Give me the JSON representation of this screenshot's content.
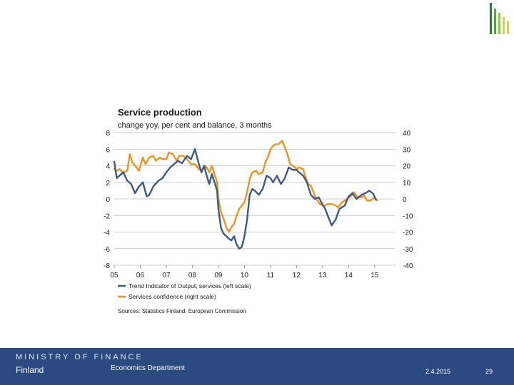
{
  "footer": {
    "ministry": "MINISTRY OF FINANCE",
    "country": "Finland",
    "department": "Economics Department",
    "date": "2.4.2015",
    "page": "29"
  },
  "colors": {
    "footer_bg": "#2a4a80",
    "series_blue": "#3d5a80",
    "series_orange": "#f0921e",
    "logo_bars": [
      "#2a7d3a",
      "#5aa23a",
      "#9bc43a",
      "#c8d85a",
      "#e6c84a"
    ]
  },
  "chart_data": {
    "type": "line",
    "title": "Service production",
    "subtitle": "change yoy, per cent and balance, 3 months",
    "x_categories": [
      "05",
      "06",
      "07",
      "08",
      "09",
      "10",
      "11",
      "12",
      "13",
      "14",
      "15"
    ],
    "xlim": [
      2005,
      2015.8
    ],
    "y_left": {
      "ticks": [
        8,
        6,
        4,
        2,
        0,
        -2,
        -4,
        -6,
        -8
      ],
      "lim": [
        -8,
        8
      ]
    },
    "y_right": {
      "ticks": [
        40,
        30,
        20,
        10,
        0,
        -10,
        -20,
        -30,
        -40
      ],
      "lim": [
        -40,
        40
      ]
    },
    "grid": true,
    "legend_position": "bottom-left",
    "source": "Sources: Statistics Finland, European Commission",
    "series": [
      {
        "name": "Trend Indicator of Output, services (left scale)",
        "axis": "left",
        "color": "#3d5a80",
        "x": [
          2005.0,
          2005.1,
          2005.2,
          2005.35,
          2005.5,
          2005.65,
          2005.8,
          2005.95,
          2006.1,
          2006.25,
          2006.35,
          2006.5,
          2006.7,
          2006.85,
          2007.0,
          2007.15,
          2007.3,
          2007.45,
          2007.6,
          2007.8,
          2007.95,
          2008.1,
          2008.25,
          2008.35,
          2008.45,
          2008.55,
          2008.65,
          2008.75,
          2008.85,
          2008.95,
          2009.0,
          2009.1,
          2009.2,
          2009.3,
          2009.4,
          2009.5,
          2009.6,
          2009.7,
          2009.8,
          2009.9,
          2010.0,
          2010.1,
          2010.2,
          2010.3,
          2010.4,
          2010.55,
          2010.7,
          2010.85,
          2011.0,
          2011.1,
          2011.25,
          2011.4,
          2011.55,
          2011.7,
          2011.85,
          2012.0,
          2012.1,
          2012.25,
          2012.4,
          2012.55,
          2012.7,
          2012.85,
          2013.0,
          2013.1,
          2013.2,
          2013.35,
          2013.5,
          2013.65,
          2013.85,
          2014.0,
          2014.15,
          2014.3,
          2014.5,
          2014.65,
          2014.8,
          2014.95,
          2015.05
        ],
        "y": [
          4.5,
          2.5,
          2.8,
          3.2,
          2.2,
          1.8,
          0.7,
          1.5,
          2.0,
          0.3,
          0.5,
          1.5,
          2.2,
          2.5,
          3.2,
          3.8,
          4.2,
          4.6,
          4.3,
          5.2,
          4.8,
          6.0,
          4.2,
          3.2,
          4.0,
          2.8,
          1.8,
          3.0,
          2.0,
          1.0,
          -1.2,
          -3.5,
          -4.2,
          -4.5,
          -4.8,
          -5.0,
          -4.5,
          -5.5,
          -6.0,
          -5.8,
          -4.5,
          -2.5,
          0.5,
          1.2,
          1.0,
          0.5,
          1.2,
          2.8,
          2.5,
          2.0,
          2.8,
          1.8,
          2.5,
          3.8,
          3.5,
          3.5,
          3.2,
          2.8,
          2.0,
          0.5,
          0.0,
          0.2,
          -0.7,
          -1.2,
          -2.0,
          -3.2,
          -2.5,
          -1.2,
          -0.8,
          0.3,
          0.7,
          0.0,
          0.5,
          0.7,
          1.0,
          0.6,
          -0.1
        ]
      },
      {
        "name": "Services confidence (right scale)",
        "axis": "right",
        "color": "#f0921e",
        "x": [
          2005.0,
          2005.1,
          2005.2,
          2005.35,
          2005.5,
          2005.6,
          2005.7,
          2005.8,
          2005.95,
          2006.1,
          2006.2,
          2006.35,
          2006.5,
          2006.6,
          2006.75,
          2006.85,
          2007.0,
          2007.1,
          2007.25,
          2007.4,
          2007.5,
          2007.65,
          2007.8,
          2007.95,
          2008.1,
          2008.25,
          2008.35,
          2008.45,
          2008.55,
          2008.65,
          2008.75,
          2008.85,
          2008.95,
          2009.0,
          2009.1,
          2009.2,
          2009.3,
          2009.4,
          2009.5,
          2009.6,
          2009.7,
          2009.8,
          2009.9,
          2010.0,
          2010.1,
          2010.2,
          2010.3,
          2010.45,
          2010.55,
          2010.7,
          2010.8,
          2010.9,
          2011.0,
          2011.1,
          2011.2,
          2011.3,
          2011.45,
          2011.55,
          2011.65,
          2011.75,
          2011.85,
          2011.95,
          2012.0,
          2012.1,
          2012.25,
          2012.35,
          2012.45,
          2012.55,
          2012.65,
          2012.75,
          2012.9,
          2013.0,
          2013.1,
          2013.2,
          2013.35,
          2013.5,
          2013.6,
          2013.75,
          2013.85,
          2013.95,
          2014.1,
          2014.2,
          2014.35,
          2014.5,
          2014.6,
          2014.7,
          2014.85,
          2015.0,
          2015.1
        ],
        "y": [
          18,
          17,
          18,
          16,
          17,
          27,
          22,
          20,
          17,
          25,
          21,
          25,
          26,
          23,
          25,
          24,
          24,
          28,
          27,
          23,
          26,
          26,
          24,
          21,
          21,
          18,
          17,
          20,
          19,
          16,
          20,
          15,
          10,
          0,
          -8,
          -12,
          -17,
          -20,
          -17,
          -15,
          -10,
          -6,
          -4,
          -2,
          4,
          12,
          16,
          17,
          15,
          16,
          22,
          25,
          30,
          32,
          33,
          33,
          35,
          31,
          27,
          21,
          20,
          19,
          18,
          19,
          18,
          13,
          9,
          8,
          4,
          0,
          -3,
          -4,
          -4,
          -3,
          -3,
          -4,
          -5,
          -2,
          -1,
          0,
          2,
          4,
          1,
          1,
          2,
          -1,
          -1,
          1,
          -1
        ]
      }
    ]
  }
}
